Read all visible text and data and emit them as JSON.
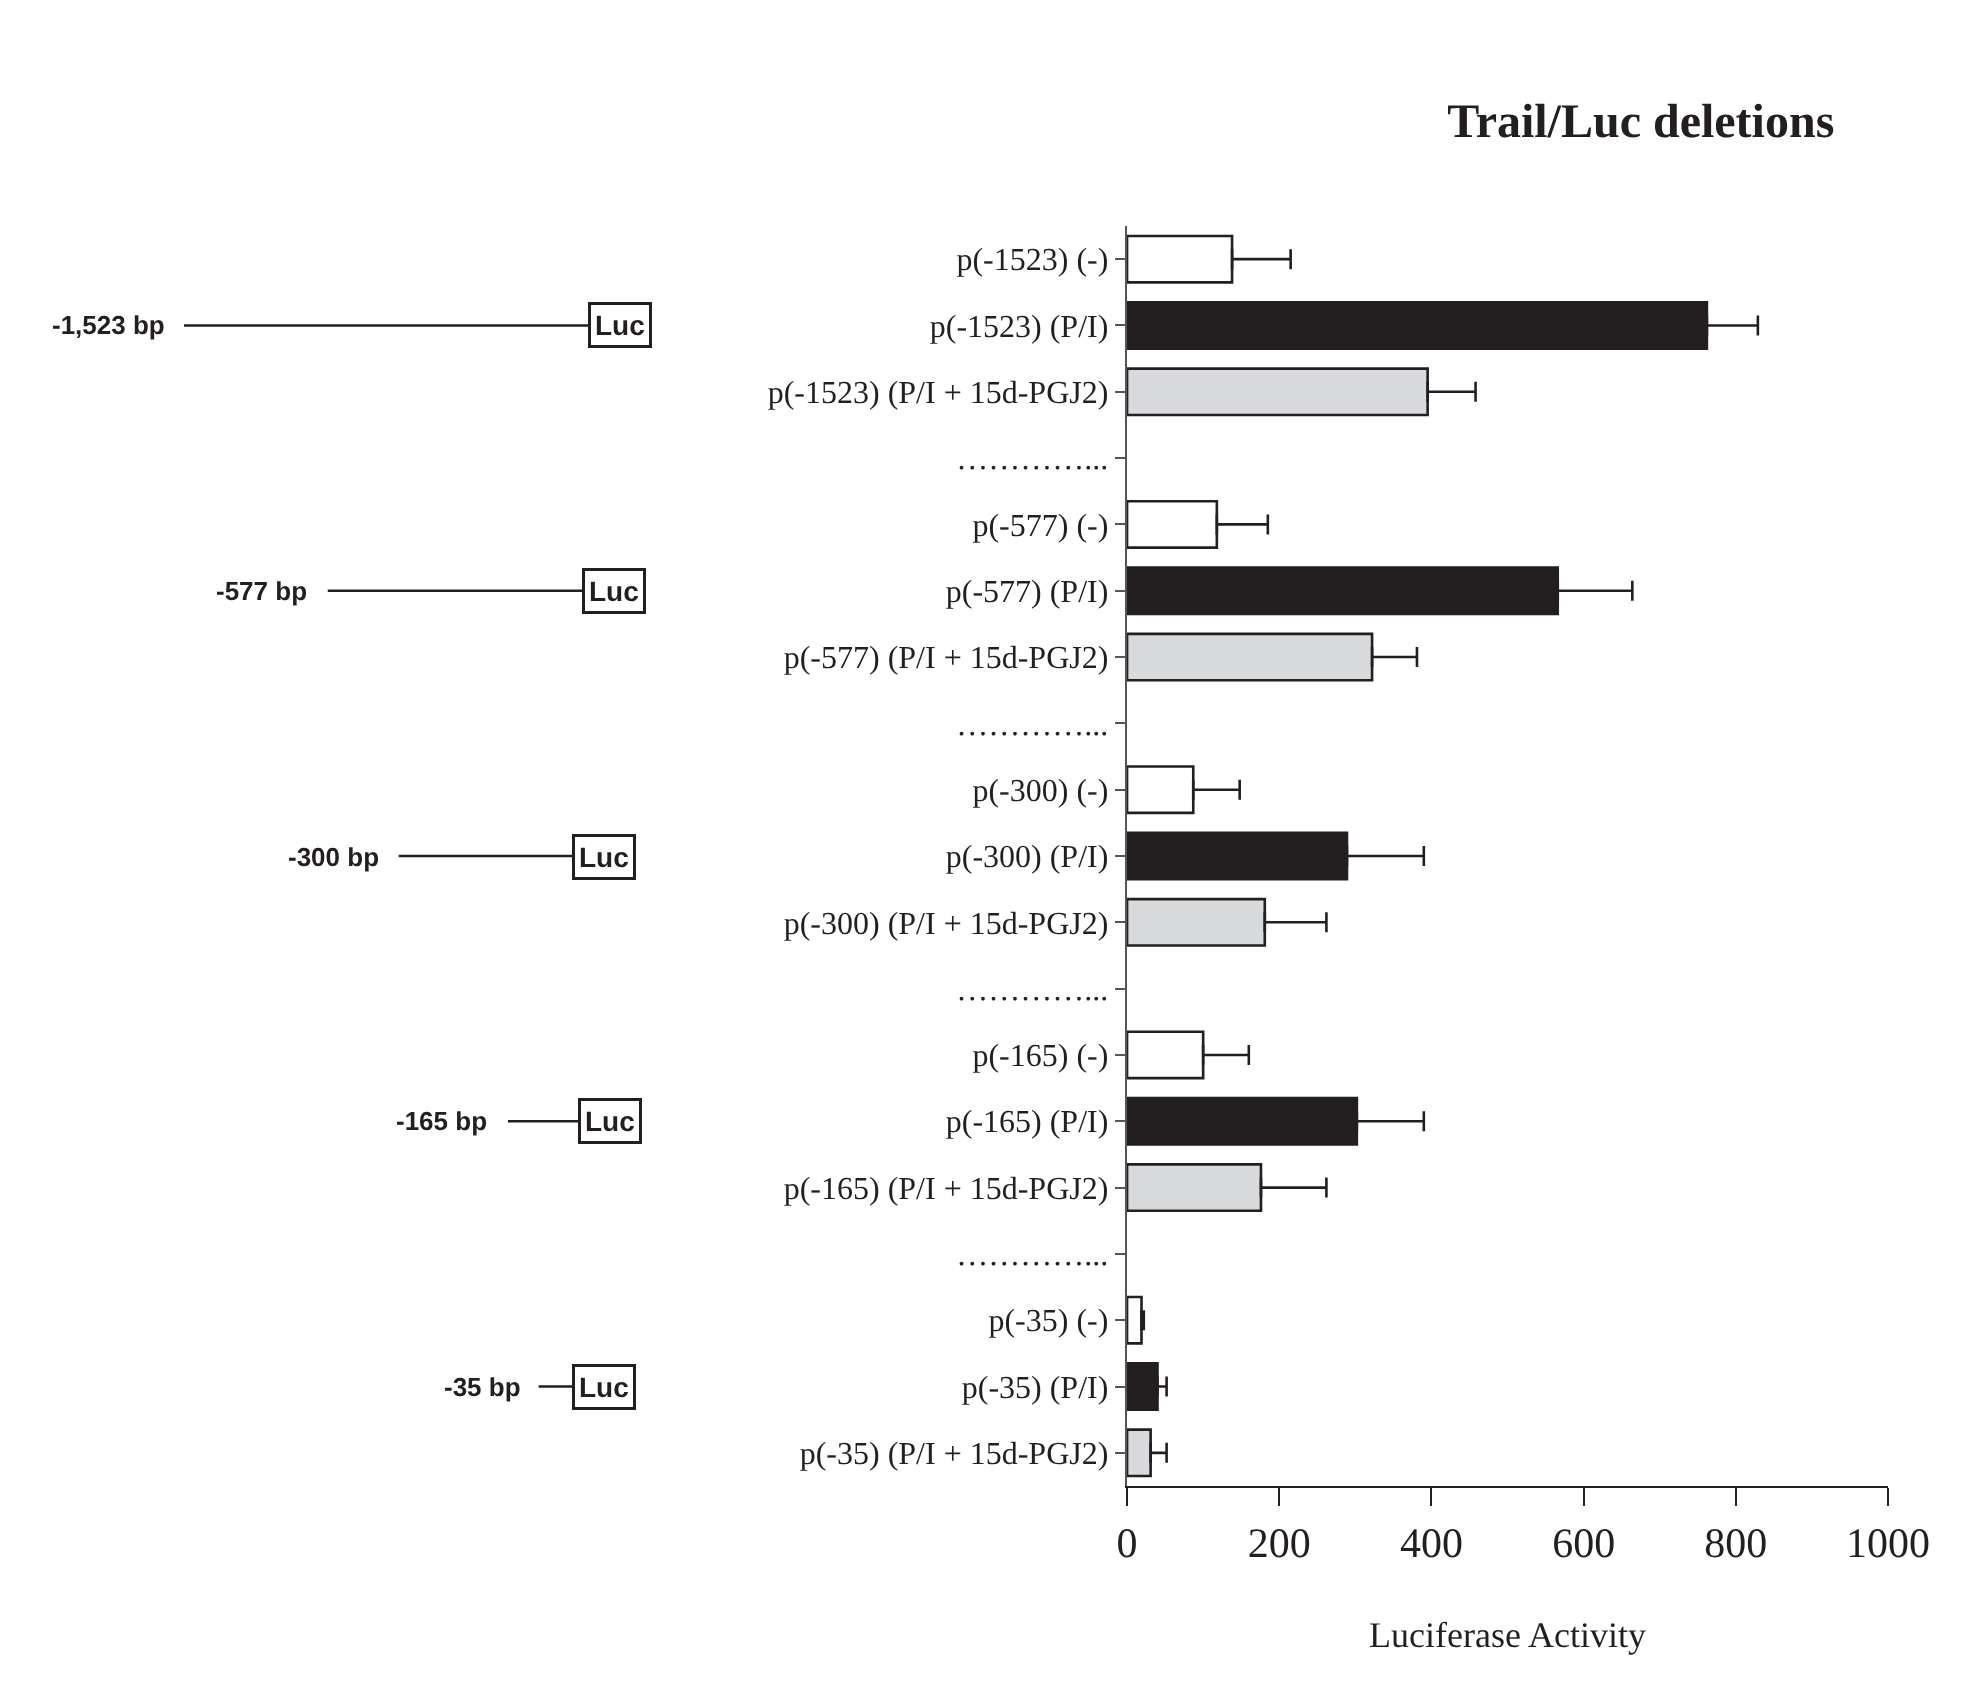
{
  "chart_data": {
    "type": "bar",
    "orientation": "horizontal",
    "title": "Trail/Luc deletions",
    "xlabel": "Luciferase Activity",
    "categories": [
      "p(-1523) (-)",
      "p(-1523) (P/I)",
      "p(-1523) (P/I + 15d-PGJ2)",
      "…………...",
      "p(-577) (-)",
      "p(-577) (P/I)",
      "p(-577) (P/I + 15d-PGJ2)",
      "…………...",
      "p(-300) (-)",
      "p(-300) (P/I)",
      "p(-300) (P/I + 15d-PGJ2)",
      "…………...",
      "p(-165) (-)",
      "p(-165) (P/I)",
      "p(-165) (P/I + 15d-PGJ2)",
      "…………...",
      "p(-35) (-)",
      "p(-35) (P/I)",
      "p(-35) (P/I + 15d-PGJ2)"
    ],
    "values": [
      138,
      762,
      395,
      null,
      118,
      566,
      322,
      null,
      87,
      289,
      181,
      null,
      100,
      302,
      176,
      null,
      19,
      40,
      31
    ],
    "errors": [
      [
        138,
        215
      ],
      [
        762,
        829
      ],
      [
        395,
        458
      ],
      null,
      [
        118,
        185
      ],
      [
        566,
        664
      ],
      [
        322,
        381
      ],
      null,
      [
        87,
        148
      ],
      [
        289,
        390
      ],
      [
        181,
        262
      ],
      null,
      [
        100,
        160
      ],
      [
        302,
        390
      ],
      [
        176,
        262
      ],
      null,
      [
        19,
        22
      ],
      [
        40,
        52
      ],
      [
        31,
        52
      ]
    ],
    "colors": [
      "#ffffff",
      "#231f20",
      "#d9dadc",
      null,
      "#ffffff",
      "#231f20",
      "#d9dadc",
      null,
      "#ffffff",
      "#231f20",
      "#d9dadc",
      null,
      "#ffffff",
      "#231f20",
      "#d9dadc",
      null,
      "#ffffff",
      "#231f20",
      "#d9dadc"
    ],
    "xlim": [
      0,
      1000
    ],
    "xticks": [
      0,
      200,
      400,
      600,
      800,
      1000
    ],
    "annotations": [
      "-1,523 bp",
      "Luc",
      "-577 bp",
      "Luc",
      "-300 bp",
      "Luc",
      "-165 bp",
      "Luc",
      "-35 bp",
      "Luc"
    ]
  }
}
